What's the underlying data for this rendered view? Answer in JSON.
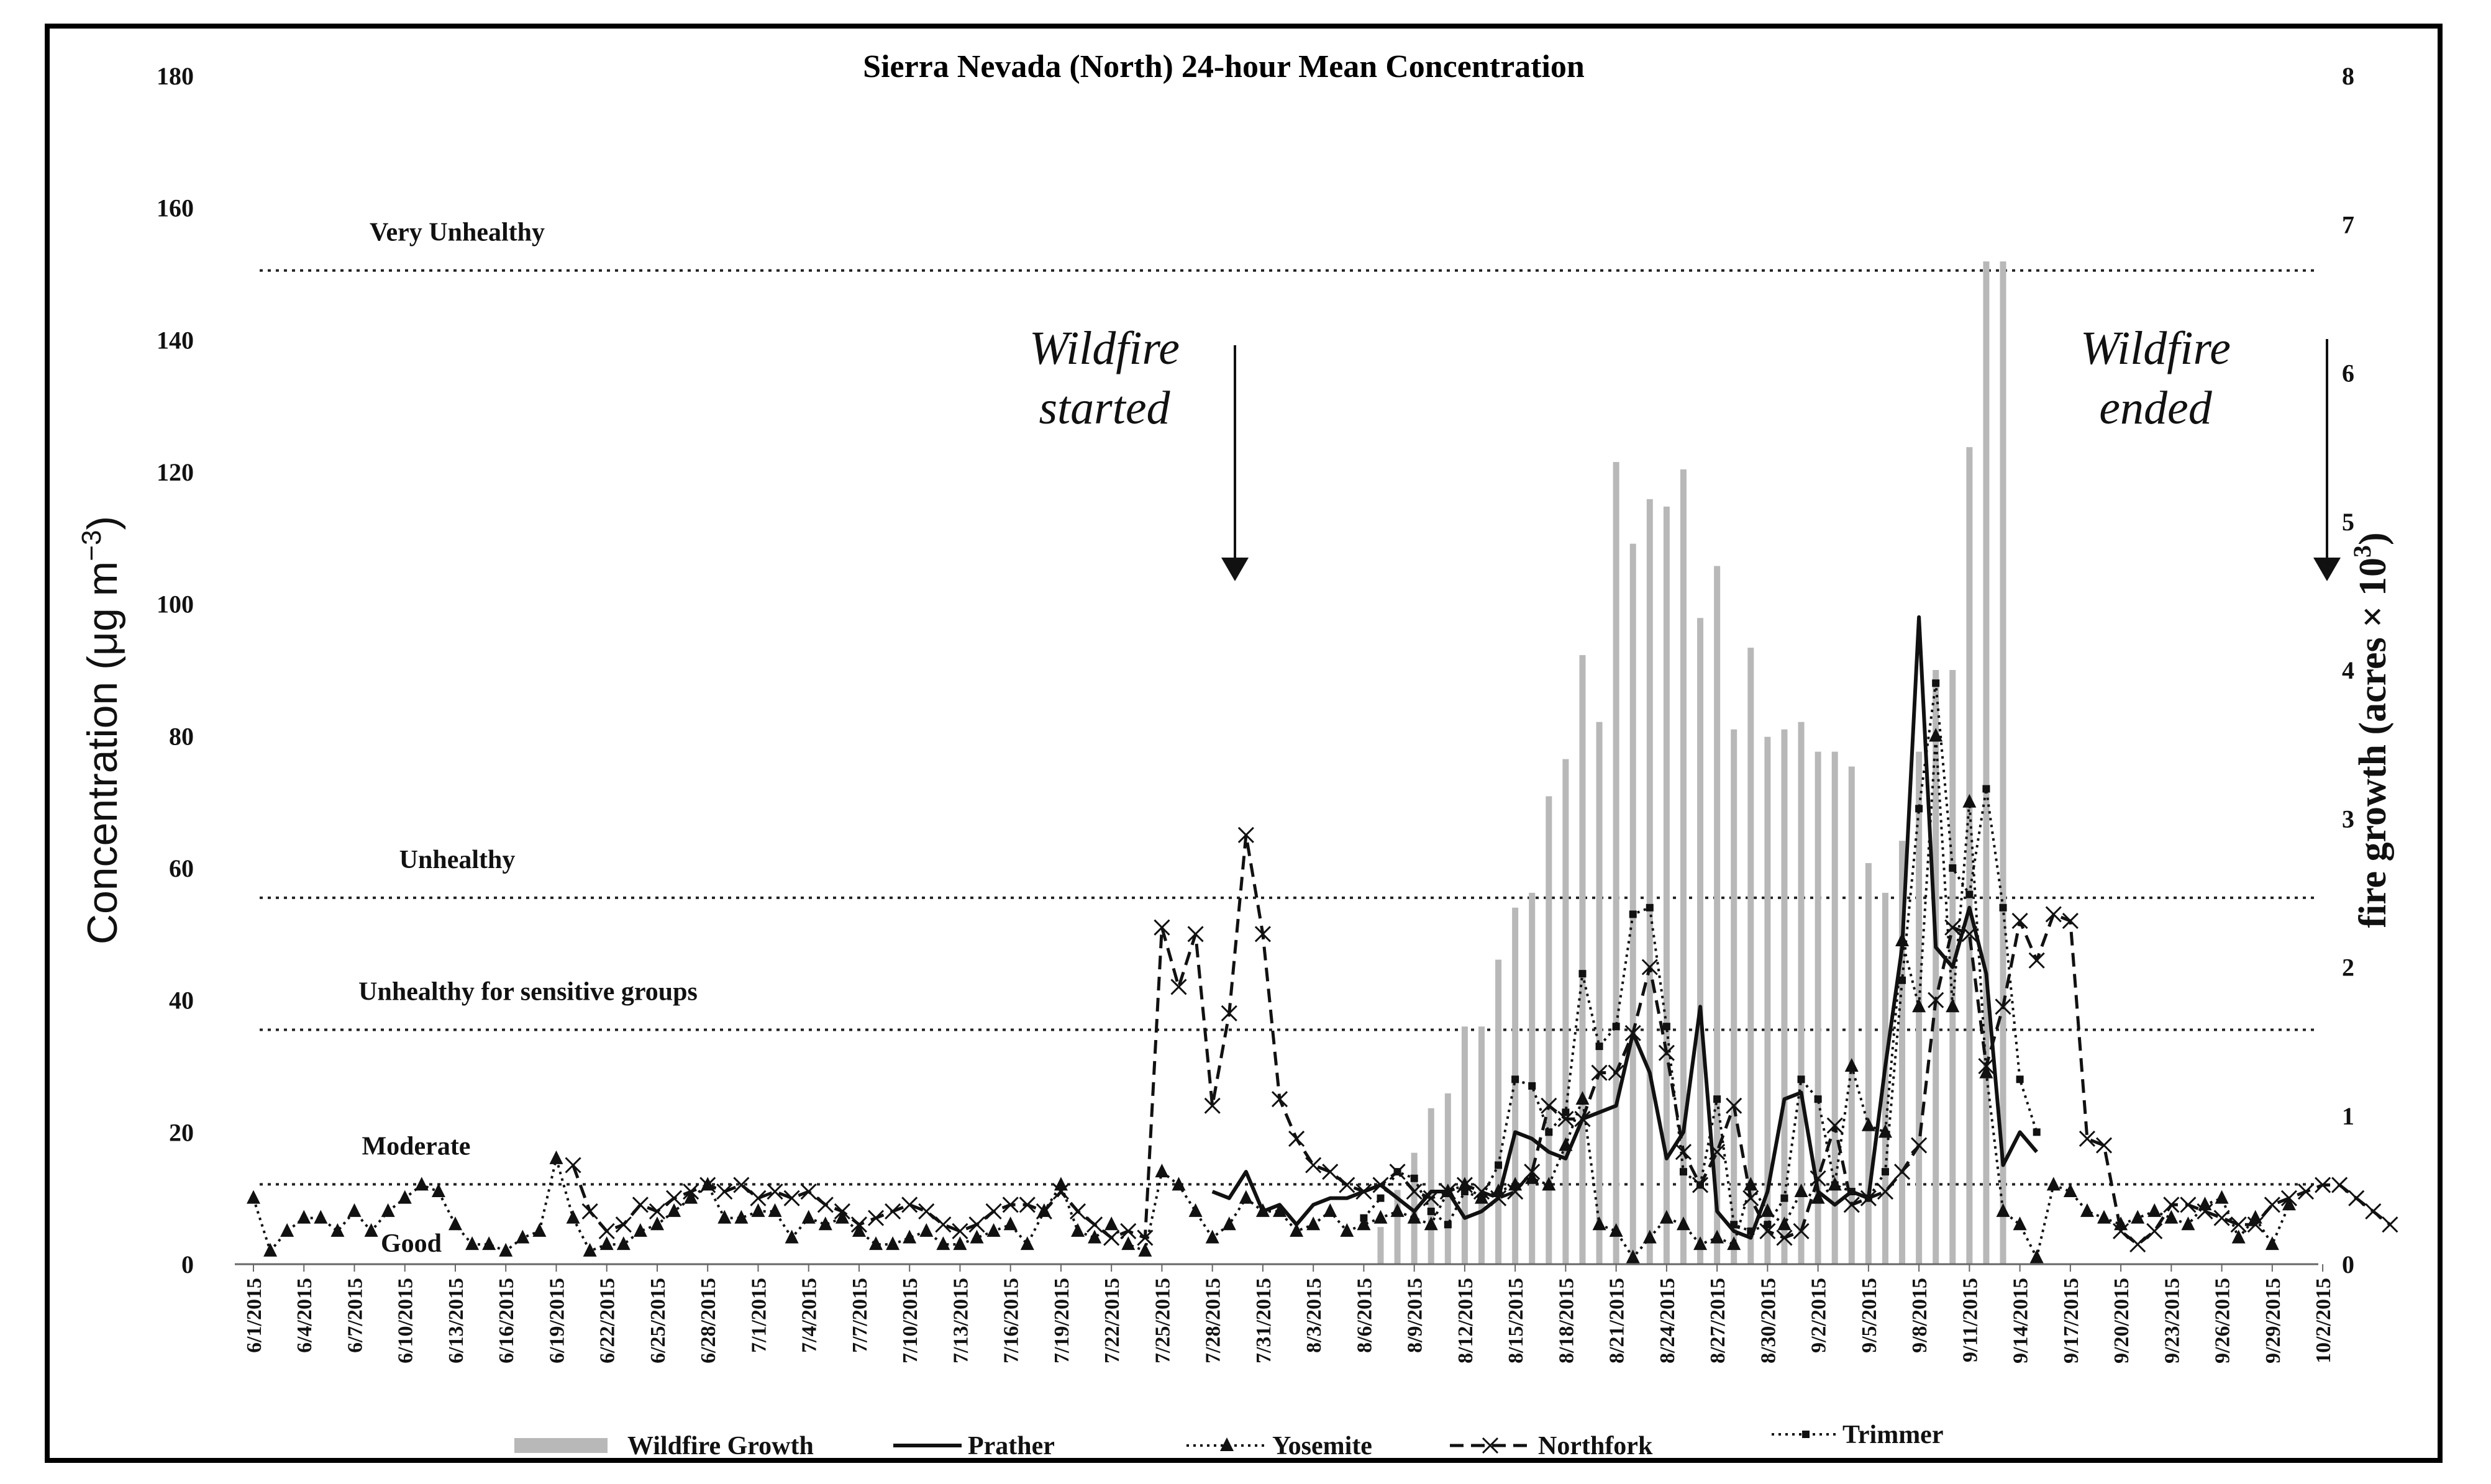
{
  "chart_data": {
    "type": "line",
    "title": "Sierra Nevada (North) 24-hour Mean Concentration",
    "ylabel_main": "Concentration (μg m",
    "ylabel_sup": "−3",
    "ylabel_end": ")",
    "y2label_main": "fire growth (acres × 10",
    "y2label_sup": "3",
    "y2label_end": ")",
    "ylim": [
      0,
      180
    ],
    "y2lim": [
      0,
      8
    ],
    "yticks": [
      "0",
      "20",
      "40",
      "60",
      "80",
      "100",
      "120",
      "140",
      "160",
      "180"
    ],
    "y2ticks": [
      "0",
      "1",
      "2",
      "3",
      "4",
      "5",
      "6",
      "7",
      "8"
    ],
    "x_start": "6/1/2015",
    "x_end": "10/2/2015",
    "x_tick_labels": [
      "6/1/2015",
      "6/4/2015",
      "6/7/2015",
      "6/10/2015",
      "6/13/2015",
      "6/16/2015",
      "6/19/2015",
      "6/22/2015",
      "6/25/2015",
      "6/28/2015",
      "7/1/2015",
      "7/4/2015",
      "7/7/2015",
      "7/10/2015",
      "7/13/2015",
      "7/16/2015",
      "7/19/2015",
      "7/22/2015",
      "7/25/2015",
      "7/28/2015",
      "7/31/2015",
      "8/3/2015",
      "8/6/2015",
      "8/9/2015",
      "8/12/2015",
      "8/15/2015",
      "8/18/2015",
      "8/21/2015",
      "8/24/2015",
      "8/27/2015",
      "8/30/2015",
      "9/2/2015",
      "9/5/2015",
      "9/8/2015",
      "9/11/2015",
      "9/14/2015",
      "9/17/2015",
      "9/20/2015",
      "9/23/2015",
      "9/26/2015",
      "9/29/2015",
      "10/2/2015"
    ],
    "thresholds": [
      {
        "label": "Very Unhealthy",
        "value": 150.5
      },
      {
        "label": "Unhealthy",
        "value": 55.5
      },
      {
        "label": "Unhealthy for sensitive groups",
        "value": 35.5
      },
      {
        "label": "Moderate",
        "value": 12.1
      },
      {
        "label": "Good",
        "value": 0
      }
    ],
    "annotations": [
      {
        "line1": "Wildfire",
        "line2": "started",
        "day": 57
      },
      {
        "line1": "Wildfire",
        "line2": "ended",
        "day": 120
      }
    ],
    "legend": [
      "Wildfire Growth",
      "Prather",
      "Yosemite",
      "Northfork",
      "Trimmer"
    ],
    "series": [
      {
        "name": "Wildfire Growth",
        "axis": "right",
        "start_day": 67,
        "values": [
          0.25,
          0.5,
          0.75,
          1.05,
          1.15,
          1.6,
          1.6,
          2.05,
          2.4,
          2.5,
          3.15,
          3.4,
          4.1,
          3.65,
          5.4,
          4.85,
          5.15,
          5.1,
          5.35,
          4.35,
          4.7,
          3.6,
          4.15,
          3.55,
          3.6,
          3.65,
          3.45,
          3.45,
          3.35,
          2.7,
          2.5,
          2.85,
          3.45,
          4.0,
          4.0,
          5.5,
          6.75,
          6.75,
          0
        ]
      },
      {
        "name": "Prather",
        "axis": "left",
        "start_day": 57,
        "values": [
          11,
          10,
          14,
          8,
          9,
          6,
          9,
          10,
          10,
          11,
          12,
          10,
          8,
          11,
          11,
          7,
          8,
          10,
          20,
          19,
          17,
          16,
          22,
          23,
          24,
          35,
          29,
          16,
          20,
          39,
          8,
          5,
          4,
          11,
          25,
          26,
          11,
          9,
          11,
          10,
          30,
          48,
          98,
          48,
          45,
          54,
          44,
          15,
          20,
          17
        ]
      },
      {
        "name": "Yosemite",
        "axis": "left",
        "start_day": 0,
        "values": [
          10,
          2,
          5,
          7,
          7,
          5,
          8,
          5,
          8,
          10,
          12,
          11,
          6,
          3,
          3,
          2,
          4,
          5,
          16,
          7,
          2,
          3,
          3,
          5,
          6,
          8,
          10,
          12,
          7,
          7,
          8,
          8,
          4,
          7,
          6,
          7,
          5,
          3,
          3,
          4,
          5,
          3,
          3,
          4,
          5,
          6,
          3,
          8,
          12,
          5,
          4,
          6,
          3,
          2,
          14,
          12,
          8,
          4,
          6,
          10,
          8,
          8,
          5,
          6,
          8,
          5,
          6,
          7,
          8,
          7,
          6,
          11,
          12,
          10,
          11,
          12,
          13,
          12,
          18,
          25,
          6,
          5,
          1,
          4,
          7,
          6,
          3,
          4,
          3,
          12,
          8,
          6,
          11,
          10,
          12,
          30,
          21,
          20,
          49,
          39,
          80,
          39,
          70,
          29,
          8,
          6,
          1,
          12,
          11,
          8,
          7,
          6,
          7,
          8,
          7,
          6,
          9,
          10,
          4,
          7,
          3,
          9
        ]
      },
      {
        "name": "Northfork",
        "axis": "left",
        "start_day": 0,
        "values": [
          null,
          null,
          null,
          null,
          null,
          null,
          null,
          null,
          null,
          null,
          null,
          null,
          null,
          null,
          null,
          null,
          null,
          null,
          null,
          15,
          8,
          5,
          6,
          9,
          8,
          10,
          11,
          12,
          11,
          12,
          10,
          11,
          10,
          11,
          9,
          8,
          6,
          7,
          8,
          9,
          8,
          6,
          5,
          6,
          8,
          9,
          9,
          8,
          11,
          8,
          6,
          4,
          5,
          4,
          51,
          42,
          50,
          24,
          38,
          65,
          50,
          25,
          19,
          15,
          14,
          12,
          11,
          12,
          14,
          11,
          10,
          11,
          12,
          11,
          10,
          11,
          14,
          24,
          22,
          22,
          29,
          29,
          35,
          45,
          32,
          17,
          12,
          17,
          24,
          10,
          5,
          4,
          5,
          13,
          21,
          9,
          10,
          11,
          14,
          18,
          40,
          51,
          50,
          30,
          39,
          52,
          46,
          53,
          52,
          19,
          18,
          5,
          3,
          5,
          9,
          9,
          8,
          7,
          6,
          6,
          9,
          10,
          11,
          12,
          12,
          10,
          8,
          6
        ]
      },
      {
        "name": "Trimmer",
        "axis": "left",
        "start_day": 66,
        "values": [
          7,
          10,
          14,
          13,
          8,
          6,
          11,
          10,
          15,
          28,
          27,
          20,
          23,
          44,
          33,
          36,
          53,
          54,
          36,
          14,
          12,
          25,
          6,
          5,
          6,
          10,
          28,
          25,
          12,
          11,
          10,
          14,
          43,
          69,
          88,
          60,
          56,
          72,
          54,
          28,
          20
        ]
      }
    ]
  }
}
